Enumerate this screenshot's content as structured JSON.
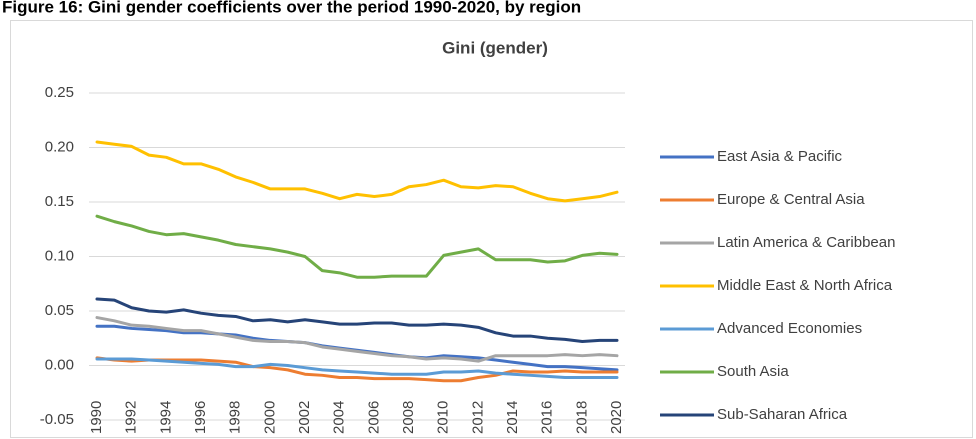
{
  "chart_data": {
    "type": "line",
    "caption": "Figure 16: Gini gender coefficients over the period 1990-2020, by region",
    "title": "Gini (gender)",
    "x": [
      1990,
      1991,
      1992,
      1993,
      1994,
      1995,
      1996,
      1997,
      1998,
      1999,
      2000,
      2001,
      2002,
      2003,
      2004,
      2005,
      2006,
      2007,
      2008,
      2009,
      2010,
      2011,
      2012,
      2013,
      2014,
      2015,
      2016,
      2017,
      2018,
      2019,
      2020
    ],
    "xlim": [
      1990,
      2020
    ],
    "xticks": [
      1990,
      1992,
      1994,
      1996,
      1998,
      2000,
      2002,
      2004,
      2006,
      2008,
      2010,
      2012,
      2014,
      2016,
      2018,
      2020
    ],
    "ylim": [
      -0.05,
      0.25
    ],
    "yticks": [
      -0.05,
      {
        "value": 0,
        "label": "0.00"
      },
      0.05,
      {
        "value": 0.1,
        "label": "0.10"
      },
      0.15,
      {
        "value": 0.2,
        "label": "0.20"
      },
      0.25
    ],
    "grid": true,
    "legend": "right",
    "series": [
      {
        "name": "East Asia & Pacific",
        "color": "#4472C4",
        "values": [
          0.036,
          0.036,
          0.034,
          0.033,
          0.032,
          0.03,
          0.03,
          0.029,
          0.028,
          0.025,
          0.023,
          0.022,
          0.021,
          0.018,
          0.016,
          0.014,
          0.012,
          0.01,
          0.008,
          0.007,
          0.009,
          0.008,
          0.007,
          0.005,
          0.003,
          0.001,
          -0.001,
          -0.001,
          -0.002,
          -0.003,
          -0.004
        ]
      },
      {
        "name": "Europe & Central Asia",
        "color": "#ED7D31",
        "values": [
          0.007,
          0.005,
          0.004,
          0.005,
          0.005,
          0.005,
          0.005,
          0.004,
          0.003,
          -0.001,
          -0.002,
          -0.004,
          -0.008,
          -0.009,
          -0.011,
          -0.011,
          -0.012,
          -0.012,
          -0.012,
          -0.013,
          -0.014,
          -0.014,
          -0.011,
          -0.009,
          -0.005,
          -0.006,
          -0.006,
          -0.005,
          -0.006,
          -0.006,
          -0.006
        ]
      },
      {
        "name": "Latin America & Caribbean",
        "color": "#A5A5A5",
        "values": [
          0.044,
          0.041,
          0.037,
          0.036,
          0.034,
          0.032,
          0.032,
          0.029,
          0.026,
          0.023,
          0.022,
          0.022,
          0.021,
          0.017,
          0.015,
          0.013,
          0.011,
          0.009,
          0.008,
          0.006,
          0.007,
          0.006,
          0.004,
          0.009,
          0.009,
          0.009,
          0.009,
          0.01,
          0.009,
          0.01,
          0.009
        ]
      },
      {
        "name": "Middle East & North Africa",
        "color": "#FFC000",
        "values": [
          0.205,
          0.203,
          0.201,
          0.193,
          0.191,
          0.185,
          0.185,
          0.18,
          0.173,
          0.168,
          0.162,
          0.162,
          0.162,
          0.158,
          0.153,
          0.157,
          0.155,
          0.157,
          0.164,
          0.166,
          0.17,
          0.164,
          0.163,
          0.165,
          0.164,
          0.158,
          0.153,
          0.151,
          0.153,
          0.155,
          0.159
        ]
      },
      {
        "name": "Advanced Economies",
        "color": "#5B9BD5",
        "values": [
          0.006,
          0.006,
          0.006,
          0.005,
          0.004,
          0.003,
          0.002,
          0.001,
          -0.001,
          -0.001,
          0.001,
          0.0,
          -0.002,
          -0.004,
          -0.005,
          -0.006,
          -0.007,
          -0.008,
          -0.008,
          -0.008,
          -0.006,
          -0.006,
          -0.005,
          -0.007,
          -0.008,
          -0.009,
          -0.01,
          -0.011,
          -0.011,
          -0.011,
          -0.011
        ]
      },
      {
        "name": "South Asia",
        "color": "#70AD47",
        "values": [
          0.137,
          0.132,
          0.128,
          0.123,
          0.12,
          0.121,
          0.118,
          0.115,
          0.111,
          0.109,
          0.107,
          0.104,
          0.1,
          0.087,
          0.085,
          0.081,
          0.081,
          0.082,
          0.082,
          0.082,
          0.101,
          0.104,
          0.107,
          0.097,
          0.097,
          0.097,
          0.095,
          0.096,
          0.101,
          0.103,
          0.102
        ]
      },
      {
        "name": "Sub-Saharan Africa",
        "color": "#264478",
        "values": [
          0.061,
          0.06,
          0.053,
          0.05,
          0.049,
          0.051,
          0.048,
          0.046,
          0.045,
          0.041,
          0.042,
          0.04,
          0.042,
          0.04,
          0.038,
          0.038,
          0.039,
          0.039,
          0.037,
          0.037,
          0.038,
          0.037,
          0.035,
          0.03,
          0.027,
          0.027,
          0.025,
          0.024,
          0.022,
          0.023,
          0.023
        ]
      }
    ]
  }
}
